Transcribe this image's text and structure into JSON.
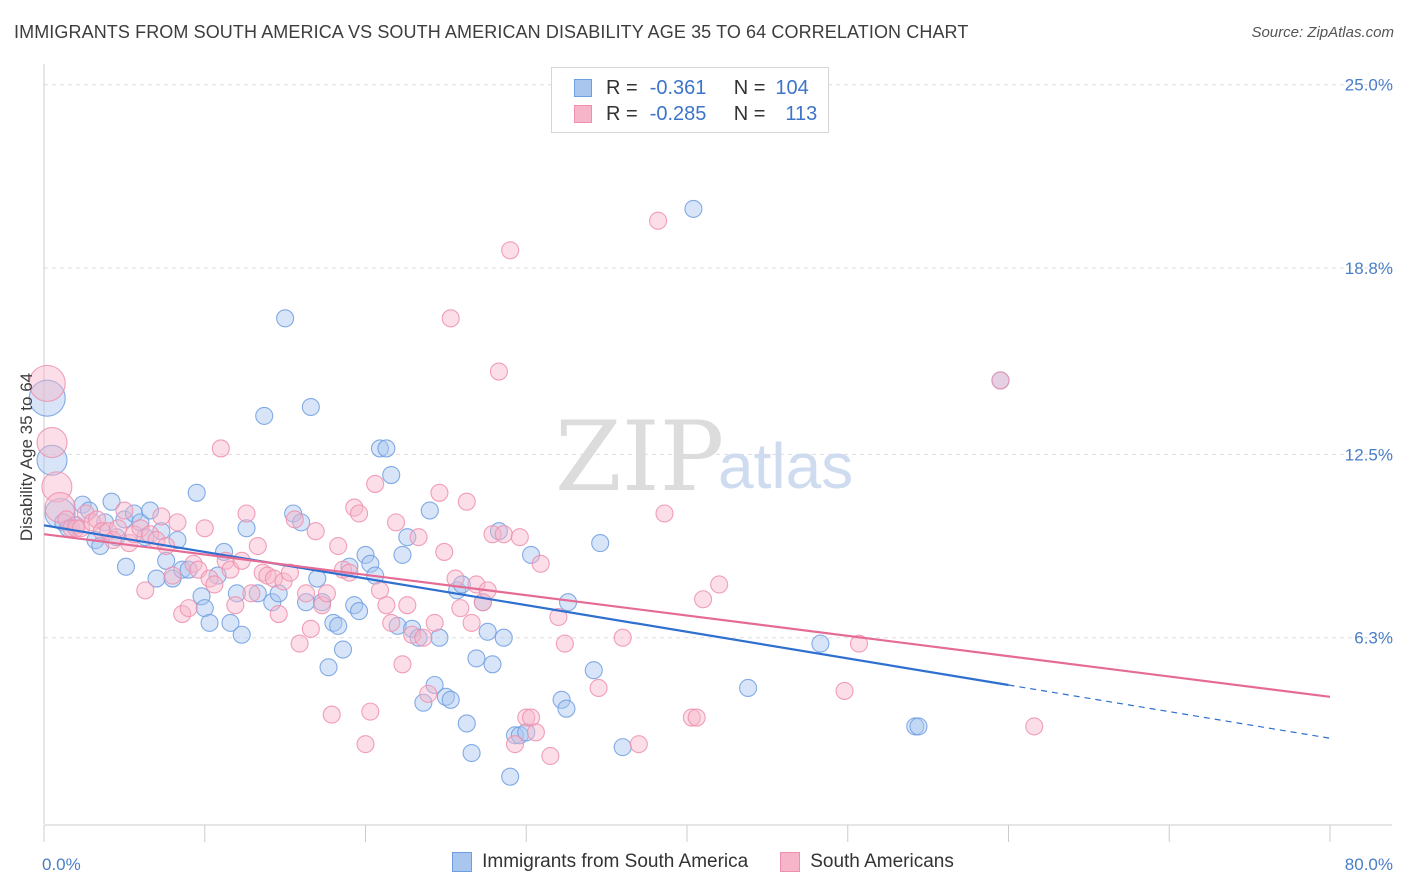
{
  "title": "IMMIGRANTS FROM SOUTH AMERICA VS SOUTH AMERICAN DISABILITY AGE 35 TO 64 CORRELATION CHART",
  "source": "Source: ZipAtlas.com",
  "watermark": {
    "zip": "ZIP",
    "atlas": "atlas"
  },
  "legend": {
    "rows": [
      {
        "r_label": "R =",
        "r_value": "-0.361",
        "n_label": "N =",
        "n_value": "104"
      },
      {
        "r_label": "R =",
        "r_value": "-0.285",
        "n_label": "N =",
        "n_value": "113"
      }
    ]
  },
  "colors": {
    "blue_fill": "#a9c6ef",
    "blue_stroke": "#6e9ee0",
    "blue_line": "#2f6fd0",
    "pink_fill": "#f6b5c9",
    "pink_stroke": "#ee8fae",
    "pink_line": "#e56b95",
    "grid": "#dddddd",
    "tick_text": "#4a7ec8"
  },
  "chart_data": {
    "type": "scatter",
    "title": "IMMIGRANTS FROM SOUTH AMERICA VS SOUTH AMERICAN DISABILITY AGE 35 TO 64 CORRELATION CHART",
    "xlabel": "",
    "ylabel": "Disability Age 35 to 64",
    "xlim": [
      0,
      80
    ],
    "ylim": [
      0,
      25.7
    ],
    "x_tick_labels": [
      "0.0%",
      "80.0%"
    ],
    "y_ticks": [
      6.3,
      12.5,
      18.8,
      25.0
    ],
    "y_tick_labels": [
      "6.3%",
      "12.5%",
      "18.8%",
      "25.0%"
    ],
    "legend_position": "top-center",
    "series": [
      {
        "name": "Immigrants from South America",
        "r": -0.361,
        "n": 104,
        "trend": {
          "x0": 0,
          "y0": 10.1,
          "x1": 60,
          "y1": 4.7,
          "dash_to_x": 80,
          "dash_to_y": 2.9
        },
        "points": [
          [
            0.2,
            14.4
          ],
          [
            0.5,
            12.3
          ],
          [
            1,
            10.5
          ],
          [
            1.2,
            10.2
          ],
          [
            1.5,
            10
          ],
          [
            2,
            10.1
          ],
          [
            2.4,
            10.8
          ],
          [
            2.8,
            10.6
          ],
          [
            3.2,
            9.6
          ],
          [
            3.5,
            9.4
          ],
          [
            3.8,
            10.2
          ],
          [
            4.2,
            10.9
          ],
          [
            4.5,
            9.7
          ],
          [
            5,
            10.3
          ],
          [
            5.1,
            8.7
          ],
          [
            5.6,
            10.5
          ],
          [
            6,
            10.2
          ],
          [
            6.3,
            9.7
          ],
          [
            6.6,
            10.6
          ],
          [
            7,
            8.3
          ],
          [
            7.3,
            9.9
          ],
          [
            7.6,
            8.9
          ],
          [
            8,
            8.3
          ],
          [
            8.3,
            9.6
          ],
          [
            8.6,
            8.6
          ],
          [
            9,
            8.6
          ],
          [
            9.5,
            11.2
          ],
          [
            9.8,
            7.7
          ],
          [
            10,
            7.3
          ],
          [
            10.3,
            6.8
          ],
          [
            10.8,
            8.4
          ],
          [
            11.2,
            9.2
          ],
          [
            11.6,
            6.8
          ],
          [
            12,
            7.8
          ],
          [
            12.3,
            6.4
          ],
          [
            12.6,
            10
          ],
          [
            13.3,
            7.8
          ],
          [
            13.7,
            13.8
          ],
          [
            14.2,
            7.5
          ],
          [
            14.6,
            7.8
          ],
          [
            15,
            17.1
          ],
          [
            15.5,
            10.5
          ],
          [
            16,
            10.2
          ],
          [
            16.3,
            7.5
          ],
          [
            16.6,
            14.1
          ],
          [
            17,
            8.3
          ],
          [
            17.3,
            7.5
          ],
          [
            17.7,
            5.3
          ],
          [
            18,
            6.8
          ],
          [
            18.3,
            6.7
          ],
          [
            18.6,
            5.9
          ],
          [
            19,
            8.7
          ],
          [
            19.3,
            7.4
          ],
          [
            19.6,
            7.2
          ],
          [
            20,
            9.1
          ],
          [
            20.3,
            8.8
          ],
          [
            20.6,
            8.4
          ],
          [
            20.9,
            12.7
          ],
          [
            21.3,
            12.7
          ],
          [
            21.6,
            11.8
          ],
          [
            22,
            6.7
          ],
          [
            22.3,
            9.1
          ],
          [
            22.6,
            9.7
          ],
          [
            22.9,
            6.6
          ],
          [
            23.3,
            6.3
          ],
          [
            23.6,
            4.1
          ],
          [
            24,
            10.6
          ],
          [
            24.3,
            4.7
          ],
          [
            24.6,
            6.3
          ],
          [
            25,
            4.3
          ],
          [
            25.3,
            4.2
          ],
          [
            25.7,
            7.9
          ],
          [
            26,
            8.1
          ],
          [
            26.3,
            3.4
          ],
          [
            26.6,
            2.4
          ],
          [
            26.9,
            5.6
          ],
          [
            27.3,
            7.5
          ],
          [
            27.6,
            6.5
          ],
          [
            27.9,
            5.4
          ],
          [
            28.3,
            9.9
          ],
          [
            28.6,
            6.3
          ],
          [
            29,
            1.6
          ],
          [
            29.3,
            3
          ],
          [
            29.6,
            3
          ],
          [
            30,
            3.1
          ],
          [
            30.3,
            9.1
          ],
          [
            32.2,
            4.2
          ],
          [
            32.5,
            3.9
          ],
          [
            32.6,
            7.5
          ],
          [
            34.2,
            5.2
          ],
          [
            34.6,
            9.5
          ],
          [
            36,
            2.6
          ],
          [
            40.4,
            20.8
          ],
          [
            43.8,
            4.6
          ],
          [
            48.3,
            6.1
          ],
          [
            54.2,
            3.3
          ],
          [
            54.4,
            3.3
          ],
          [
            59.5,
            15
          ]
        ]
      },
      {
        "name": "South Americans",
        "r": -0.285,
        "n": 113,
        "trend": {
          "x0": 0,
          "y0": 9.8,
          "x1": 80,
          "y1": 4.3
        },
        "points": [
          [
            0.2,
            14.9
          ],
          [
            0.5,
            12.9
          ],
          [
            0.8,
            11.4
          ],
          [
            1,
            10.7
          ],
          [
            1.4,
            10.3
          ],
          [
            1.7,
            10
          ],
          [
            2,
            10
          ],
          [
            2.3,
            10
          ],
          [
            2.6,
            10.5
          ],
          [
            3,
            10.2
          ],
          [
            3.3,
            10.3
          ],
          [
            3.6,
            9.9
          ],
          [
            4,
            9.9
          ],
          [
            4.3,
            9.6
          ],
          [
            4.6,
            10
          ],
          [
            5,
            10.6
          ],
          [
            5.3,
            9.5
          ],
          [
            5.6,
            9.8
          ],
          [
            6,
            10
          ],
          [
            6.3,
            7.9
          ],
          [
            6.6,
            9.8
          ],
          [
            7,
            9.6
          ],
          [
            7.3,
            10.4
          ],
          [
            7.6,
            9.4
          ],
          [
            8,
            8.4
          ],
          [
            8.3,
            10.2
          ],
          [
            8.6,
            7.1
          ],
          [
            9,
            7.3
          ],
          [
            9.3,
            8.8
          ],
          [
            9.6,
            8.6
          ],
          [
            10,
            10
          ],
          [
            10.3,
            8.3
          ],
          [
            10.6,
            8.1
          ],
          [
            11,
            12.7
          ],
          [
            11.3,
            8.9
          ],
          [
            11.6,
            8.6
          ],
          [
            11.9,
            7.4
          ],
          [
            12.3,
            8.9
          ],
          [
            12.6,
            10.5
          ],
          [
            12.9,
            7.8
          ],
          [
            13.3,
            9.4
          ],
          [
            13.6,
            8.5
          ],
          [
            13.9,
            8.4
          ],
          [
            14.3,
            8.3
          ],
          [
            14.6,
            7.1
          ],
          [
            14.9,
            8.2
          ],
          [
            15.3,
            8.5
          ],
          [
            15.6,
            10.3
          ],
          [
            15.9,
            6.1
          ],
          [
            16.3,
            7.8
          ],
          [
            16.6,
            6.6
          ],
          [
            16.9,
            9.9
          ],
          [
            17.3,
            7.4
          ],
          [
            17.6,
            7.8
          ],
          [
            17.9,
            3.7
          ],
          [
            18.3,
            9.4
          ],
          [
            18.6,
            8.6
          ],
          [
            19,
            8.5
          ],
          [
            19.3,
            10.7
          ],
          [
            19.6,
            10.5
          ],
          [
            20,
            2.7
          ],
          [
            20.3,
            3.8
          ],
          [
            20.6,
            11.5
          ],
          [
            20.9,
            7.9
          ],
          [
            21.3,
            7.4
          ],
          [
            21.6,
            6.8
          ],
          [
            21.9,
            10.2
          ],
          [
            22.3,
            5.4
          ],
          [
            22.6,
            7.4
          ],
          [
            22.9,
            6.4
          ],
          [
            23.3,
            9.7
          ],
          [
            23.6,
            6.3
          ],
          [
            23.9,
            4.4
          ],
          [
            24.3,
            6.8
          ],
          [
            24.6,
            11.2
          ],
          [
            24.9,
            9.2
          ],
          [
            25.3,
            17.1
          ],
          [
            25.6,
            8.3
          ],
          [
            25.9,
            7.3
          ],
          [
            26.3,
            10.9
          ],
          [
            26.6,
            6.8
          ],
          [
            26.9,
            8.1
          ],
          [
            27.3,
            7.5
          ],
          [
            27.6,
            7.9
          ],
          [
            27.9,
            9.8
          ],
          [
            28.3,
            15.3
          ],
          [
            28.6,
            9.8
          ],
          [
            29,
            19.4
          ],
          [
            29.3,
            2.7
          ],
          [
            29.6,
            9.7
          ],
          [
            30,
            3.6
          ],
          [
            30.3,
            3.6
          ],
          [
            30.6,
            3.1
          ],
          [
            30.9,
            8.8
          ],
          [
            31.5,
            2.3
          ],
          [
            32,
            7
          ],
          [
            32.4,
            6.1
          ],
          [
            34.5,
            4.6
          ],
          [
            36,
            6.3
          ],
          [
            37,
            2.7
          ],
          [
            38.2,
            20.4
          ],
          [
            38.6,
            10.5
          ],
          [
            40.3,
            3.6
          ],
          [
            40.6,
            3.6
          ],
          [
            41,
            7.6
          ],
          [
            42,
            8.1
          ],
          [
            49.8,
            4.5
          ],
          [
            50.7,
            6.1
          ],
          [
            59.5,
            15
          ],
          [
            61.6,
            3.3
          ]
        ]
      }
    ]
  }
}
